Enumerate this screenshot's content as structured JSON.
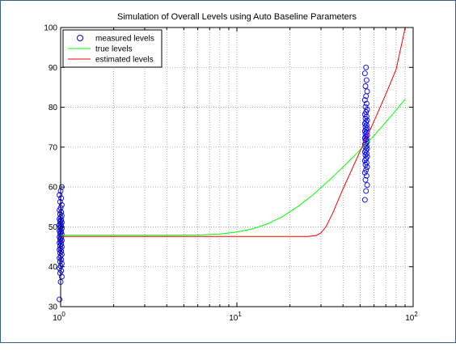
{
  "chart_data": {
    "type": "line",
    "title": "Simulation of Overall Levels using Auto Baseline Parameters",
    "xlabel": "",
    "ylabel": "",
    "x_scale": "log",
    "xlim": [
      1,
      100
    ],
    "ylim": [
      30,
      100
    ],
    "x_tick_labels": [
      {
        "base": "10",
        "exp": "0"
      },
      {
        "base": "10",
        "exp": "1"
      },
      {
        "base": "10",
        "exp": "2"
      }
    ],
    "y_ticks": [
      "30",
      "40",
      "50",
      "60",
      "70",
      "80",
      "90",
      "100"
    ],
    "grid": true,
    "legend_position": "top-left",
    "series": [
      {
        "name": "measured levels",
        "style": "markers",
        "marker": "circle",
        "color": "#0000ff",
        "groups": [
          {
            "x": 1,
            "y_values": [
              31.8,
              36.2,
              37.5,
              38.4,
              39.0,
              39.6,
              40.2,
              40.8,
              41.3,
              41.8,
              42.2,
              42.7,
              43.1,
              43.5,
              43.9,
              44.3,
              44.6,
              45.0,
              45.3,
              45.7,
              46.0,
              46.3,
              46.6,
              46.9,
              47.2,
              47.5,
              47.8,
              48.1,
              48.4,
              48.7,
              49.0,
              49.3,
              49.6,
              49.9,
              50.2,
              50.5,
              50.8,
              51.1,
              51.4,
              51.7,
              52.0,
              52.4,
              52.8,
              53.2,
              53.7,
              54.2,
              54.8,
              55.5,
              56.3,
              57.2,
              58.0,
              59.0,
              60.0
            ]
          },
          {
            "x": 54,
            "y_values": [
              56.8,
              59.0,
              60.5,
              61.8,
              62.8,
              63.6,
              64.3,
              65.0,
              65.6,
              66.1,
              66.6,
              67.1,
              67.6,
              68.0,
              68.4,
              68.8,
              69.2,
              69.6,
              70.0,
              70.3,
              70.7,
              71.0,
              71.4,
              71.7,
              72.0,
              72.3,
              72.7,
              73.0,
              73.3,
              73.7,
              74.0,
              74.4,
              74.7,
              75.1,
              75.5,
              75.9,
              76.3,
              76.7,
              77.2,
              77.7,
              78.2,
              78.8,
              79.4,
              80.1,
              80.9,
              81.8,
              82.8,
              84.0,
              85.3,
              86.8,
              88.5,
              90.0
            ]
          }
        ]
      },
      {
        "name": "true levels",
        "style": "line",
        "color": "#00ff00",
        "x": [
          1,
          2,
          4,
          6,
          8,
          10,
          12,
          15,
          18,
          22,
          27,
          33,
          40,
          50,
          60,
          75,
          90
        ],
        "y": [
          47.9,
          47.9,
          47.9,
          47.95,
          48.2,
          48.7,
          49.4,
          50.8,
          52.5,
          55.0,
          58.0,
          61.5,
          65.0,
          69.3,
          72.9,
          77.8,
          82.0
        ]
      },
      {
        "name": "estimated levels",
        "style": "line",
        "color": "#ff0000",
        "x": [
          1,
          5,
          10,
          20,
          25,
          28,
          30,
          32,
          35,
          40,
          45,
          50,
          55,
          60,
          70,
          80,
          90
        ],
        "y": [
          47.6,
          47.6,
          47.6,
          47.6,
          47.6,
          47.8,
          48.5,
          50.0,
          53.5,
          59.5,
          64.5,
          69.0,
          72.8,
          76.5,
          83.3,
          89.5,
          99.8
        ]
      }
    ]
  }
}
